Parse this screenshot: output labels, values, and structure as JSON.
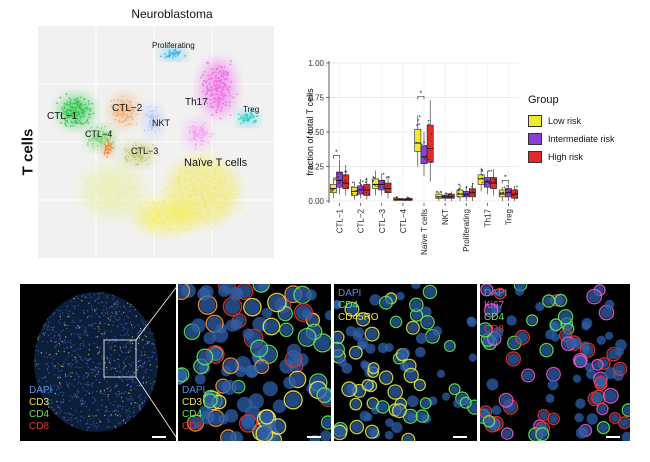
{
  "figure": {
    "row_label": "T cells",
    "umap": {
      "title": "Neuroblastoma",
      "cluster_labels": [
        "Proliferating",
        "Th17",
        "Treg",
        "CTL−2",
        "CTL−1",
        "CTL−4",
        "NKT",
        "CTL−3",
        "Naïve T cells"
      ]
    },
    "legend": {
      "title": "Group",
      "items": [
        {
          "label": "Low risk",
          "color": "#f2e933"
        },
        {
          "label": "Intermediate risk",
          "color": "#8a3fd6"
        },
        {
          "label": "High risk",
          "color": "#e02a2a"
        }
      ]
    },
    "micrographs": [
      {
        "labels": [
          {
            "text": "DAPI",
            "color": "#5b8fe8"
          },
          {
            "text": "CD3",
            "color": "#f0e64a"
          },
          {
            "text": "CD4",
            "color": "#5fe35f"
          },
          {
            "text": "CD8",
            "color": "#e8342c"
          }
        ]
      },
      {
        "labels": [
          {
            "text": "DAPI",
            "color": "#5b8fe8"
          },
          {
            "text": "CD3",
            "color": "#f0e64a"
          },
          {
            "text": "CD4",
            "color": "#5fe35f"
          },
          {
            "text": "CD8",
            "color": "#e8342c"
          }
        ]
      },
      {
        "labels": [
          {
            "text": "DAPI",
            "color": "#5b8fe8"
          },
          {
            "text": "CD4",
            "color": "#5fe35f"
          },
          {
            "text": "CD45RO",
            "color": "#f0e64a"
          }
        ]
      },
      {
        "labels": [
          {
            "text": "DAPI",
            "color": "#5b8fe8"
          },
          {
            "text": "Ki67",
            "color": "#e05ad8"
          },
          {
            "text": "CD4",
            "color": "#5fe35f"
          },
          {
            "text": "CD8",
            "color": "#e8342c"
          }
        ]
      }
    ]
  },
  "chart_data": {
    "type": "box",
    "ylabel": "fraction of total T cells",
    "xlabel": "",
    "ylim": [
      0,
      1
    ],
    "yticks": [
      "0.00",
      "0.25",
      "0.50",
      "0.75",
      "1.00"
    ],
    "grid": true,
    "categories": [
      "CTL−1",
      "CTL−2",
      "CTL−3",
      "CTL−4",
      "Naïve T cells",
      "NKT",
      "Proliferating",
      "Th17",
      "Treg"
    ],
    "series": [
      {
        "name": "Low risk",
        "color": "#f2e933",
        "boxes": [
          {
            "q1": 0.06,
            "med": 0.09,
            "q3": 0.12,
            "lo": 0.02,
            "hi": 0.17
          },
          {
            "q1": 0.04,
            "med": 0.07,
            "q3": 0.1,
            "lo": 0.01,
            "hi": 0.14
          },
          {
            "q1": 0.09,
            "med": 0.12,
            "q3": 0.16,
            "lo": 0.04,
            "hi": 0.22
          },
          {
            "q1": 0.005,
            "med": 0.01,
            "q3": 0.02,
            "lo": 0.0,
            "hi": 0.03
          },
          {
            "q1": 0.36,
            "med": 0.42,
            "q3": 0.52,
            "lo": 0.25,
            "hi": 0.62
          },
          {
            "q1": 0.02,
            "med": 0.03,
            "q3": 0.05,
            "lo": 0.0,
            "hi": 0.07
          },
          {
            "q1": 0.03,
            "med": 0.05,
            "q3": 0.08,
            "lo": 0.0,
            "hi": 0.12
          },
          {
            "q1": 0.12,
            "med": 0.16,
            "q3": 0.19,
            "lo": 0.07,
            "hi": 0.24
          },
          {
            "q1": 0.03,
            "med": 0.05,
            "q3": 0.08,
            "lo": 0.0,
            "hi": 0.1
          }
        ]
      },
      {
        "name": "Intermediate risk",
        "color": "#8a3fd6",
        "boxes": [
          {
            "q1": 0.1,
            "med": 0.15,
            "q3": 0.21,
            "lo": 0.05,
            "hi": 0.3
          },
          {
            "q1": 0.05,
            "med": 0.08,
            "q3": 0.11,
            "lo": 0.02,
            "hi": 0.16
          },
          {
            "q1": 0.08,
            "med": 0.12,
            "q3": 0.15,
            "lo": 0.04,
            "hi": 0.2
          },
          {
            "q1": 0.005,
            "med": 0.01,
            "q3": 0.015,
            "lo": 0.0,
            "hi": 0.02
          },
          {
            "q1": 0.27,
            "med": 0.32,
            "q3": 0.4,
            "lo": 0.18,
            "hi": 0.5
          },
          {
            "q1": 0.02,
            "med": 0.03,
            "q3": 0.04,
            "lo": 0.0,
            "hi": 0.06
          },
          {
            "q1": 0.03,
            "med": 0.05,
            "q3": 0.07,
            "lo": 0.0,
            "hi": 0.11
          },
          {
            "q1": 0.1,
            "med": 0.14,
            "q3": 0.17,
            "lo": 0.05,
            "hi": 0.22
          },
          {
            "q1": 0.03,
            "med": 0.06,
            "q3": 0.09,
            "lo": 0.0,
            "hi": 0.12
          }
        ]
      },
      {
        "name": "High risk",
        "color": "#e02a2a",
        "boxes": [
          {
            "q1": 0.09,
            "med": 0.13,
            "q3": 0.19,
            "lo": 0.04,
            "hi": 0.26
          },
          {
            "q1": 0.04,
            "med": 0.08,
            "q3": 0.12,
            "lo": 0.01,
            "hi": 0.17
          },
          {
            "q1": 0.06,
            "med": 0.09,
            "q3": 0.13,
            "lo": 0.02,
            "hi": 0.18
          },
          {
            "q1": 0.005,
            "med": 0.01,
            "q3": 0.02,
            "lo": 0.0,
            "hi": 0.03
          },
          {
            "q1": 0.28,
            "med": 0.38,
            "q3": 0.55,
            "lo": 0.14,
            "hi": 0.73
          },
          {
            "q1": 0.02,
            "med": 0.03,
            "q3": 0.05,
            "lo": 0.0,
            "hi": 0.07
          },
          {
            "q1": 0.03,
            "med": 0.06,
            "q3": 0.09,
            "lo": 0.0,
            "hi": 0.13
          },
          {
            "q1": 0.09,
            "med": 0.13,
            "q3": 0.17,
            "lo": 0.04,
            "hi": 0.23
          },
          {
            "q1": 0.02,
            "med": 0.05,
            "q3": 0.08,
            "lo": 0.0,
            "hi": 0.11
          }
        ]
      }
    ],
    "significance": [
      "CTL−1",
      "Naïve T cells",
      "Treg"
    ]
  }
}
